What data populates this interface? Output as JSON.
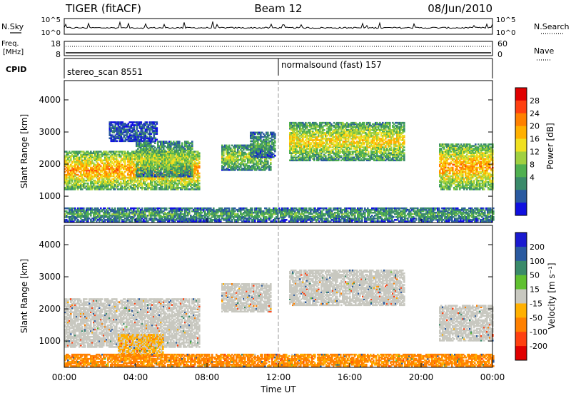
{
  "header": {
    "station": "TIGER (fitACF)",
    "beam": "Beam 12",
    "date": "08/Jun/2010"
  },
  "noise_panel": {
    "left_label": "N.Sky",
    "right_label": "N.Search",
    "top_tick": "10^5",
    "bottom_tick": "10^0",
    "right_top_tick": "10^5",
    "right_bottom_tick": "10^0"
  },
  "freq_panel": {
    "left_label_line1": "Freq.",
    "left_label_line2": "[MHz]",
    "right_label": "Nave",
    "left_ticks": [
      "18",
      "8"
    ],
    "right_ticks": [
      "60",
      "0"
    ]
  },
  "cpid_panel": {
    "label": "CPID",
    "segments": [
      {
        "name": "stereo_scan 8551",
        "start_hour": 0
      },
      {
        "name": "normalsound (fast) 157",
        "start_hour": 12
      }
    ]
  },
  "x_axis": {
    "label": "Time UT",
    "ticks": [
      "00:00",
      "04:00",
      "08:00",
      "12:00",
      "16:00",
      "20:00",
      "00:00"
    ],
    "range_hours": [
      0,
      24
    ]
  },
  "chart_data": [
    {
      "type": "heatmap",
      "name": "power",
      "ylabel": "Slant Range [km]",
      "ylim": [
        180,
        4600
      ],
      "yticks": [
        1000,
        2000,
        3000,
        4000
      ],
      "xlim": [
        0,
        24
      ],
      "colorbar_label": "Power [dB]",
      "colorbar_ticks": [
        "28",
        "24",
        "20",
        "16",
        "12",
        "8",
        "4"
      ],
      "colorbar_colors": [
        "#e00000",
        "#ff4010",
        "#ff8000",
        "#ffb000",
        "#f0e020",
        "#a0d040",
        "#50b050",
        "#3a8a6a",
        "#2a5aa0",
        "#1010e0"
      ],
      "echo_regions": [
        {
          "t0": 0.0,
          "t1": 7.6,
          "r0": 1200,
          "r1": 2400,
          "p": 20
        },
        {
          "t0": 4.0,
          "t1": 7.2,
          "r0": 1600,
          "r1": 2700,
          "p": 14
        },
        {
          "t0": 2.5,
          "t1": 5.2,
          "r0": 2700,
          "r1": 3300,
          "p": 6
        },
        {
          "t0": 8.8,
          "t1": 11.6,
          "r0": 1800,
          "r1": 2600,
          "p": 14
        },
        {
          "t0": 10.4,
          "t1": 11.8,
          "r0": 2200,
          "r1": 3000,
          "p": 10
        },
        {
          "t0": 12.6,
          "t1": 19.0,
          "r0": 2100,
          "r1": 3300,
          "p": 17
        },
        {
          "t0": 21.0,
          "t1": 24.0,
          "r0": 1200,
          "r1": 2600,
          "p": 20
        },
        {
          "t0": 0.0,
          "t1": 24.0,
          "r0": 200,
          "r1": 650,
          "p": 10
        }
      ]
    },
    {
      "type": "heatmap",
      "name": "velocity",
      "ylabel": "Slant Range [km]",
      "ylim": [
        180,
        4600
      ],
      "yticks": [
        1000,
        2000,
        3000,
        4000
      ],
      "xlim": [
        0,
        24
      ],
      "colorbar_label": "Velocity [m s⁻¹]",
      "colorbar_ticks": [
        "200",
        "100",
        "50",
        "15",
        "-15",
        "-50",
        "-100",
        "-200"
      ],
      "colorbar_colors": [
        "#1a1ad0",
        "#2a5aa0",
        "#3a8a6a",
        "#60c030",
        "#c8c8c0",
        "#ffb000",
        "#ff8000",
        "#ff4010",
        "#e00000"
      ],
      "echo_regions": [
        {
          "t0": 0.0,
          "t1": 7.6,
          "r0": 800,
          "r1": 2300,
          "v": 0
        },
        {
          "t0": 3.0,
          "t1": 5.5,
          "r0": 500,
          "r1": 1200,
          "v": -20
        },
        {
          "t0": 8.8,
          "t1": 11.6,
          "r0": 1900,
          "r1": 2800,
          "v": 0
        },
        {
          "t0": 12.6,
          "t1": 19.0,
          "r0": 2100,
          "r1": 3200,
          "v": 0
        },
        {
          "t0": 21.0,
          "t1": 24.0,
          "r0": 1000,
          "r1": 2100,
          "v": 0
        },
        {
          "t0": 0.0,
          "t1": 24.0,
          "r0": 200,
          "r1": 600,
          "v": -40
        }
      ]
    }
  ]
}
